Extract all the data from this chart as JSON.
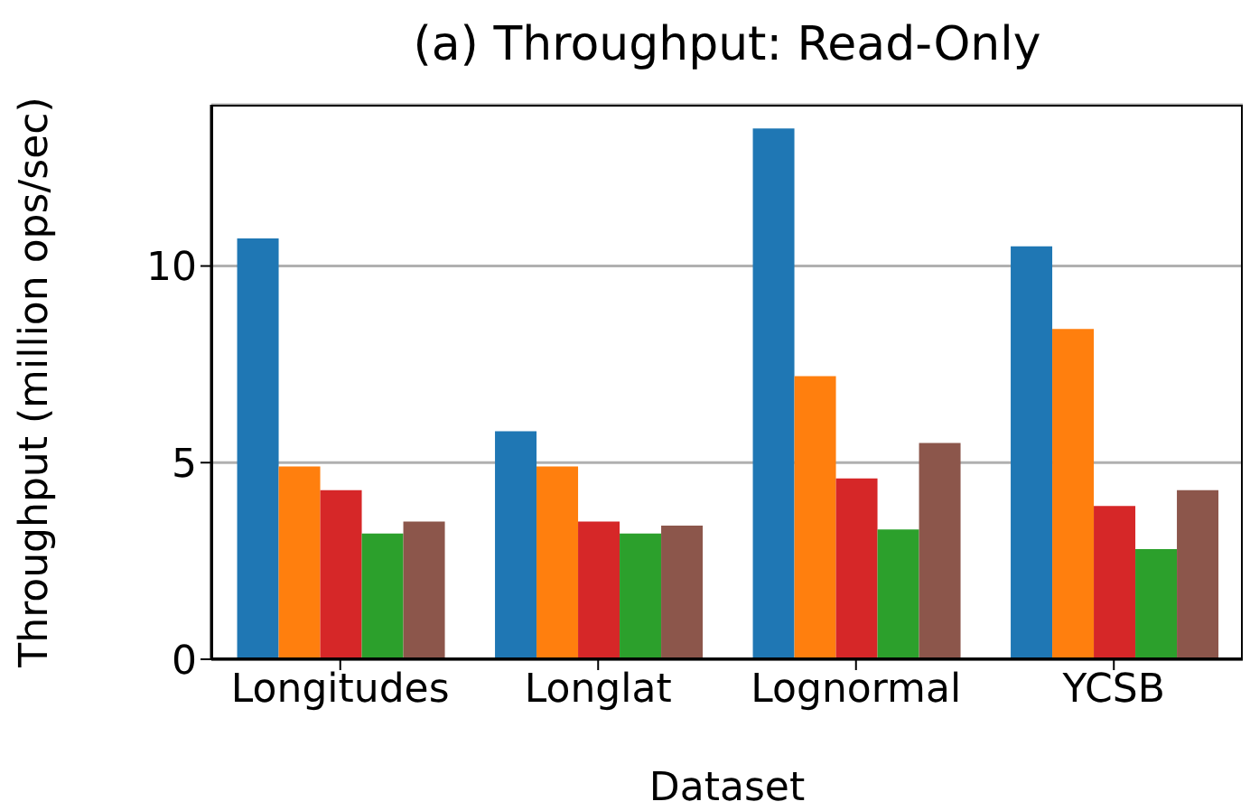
{
  "chart_data": {
    "type": "bar",
    "title": "(a) Throughput: Read-Only",
    "xlabel": "Dataset",
    "ylabel": "Throughput (million ops/sec)",
    "categories": [
      "Longitudes",
      "Longlat",
      "Lognormal",
      "YCSB"
    ],
    "series": [
      {
        "color": "#1f77b4",
        "values": [
          10.7,
          5.8,
          13.5,
          10.5
        ]
      },
      {
        "color": "#ff7f0e",
        "values": [
          4.9,
          4.9,
          7.2,
          8.4
        ]
      },
      {
        "color": "#d62728",
        "values": [
          4.3,
          3.5,
          4.6,
          3.9
        ]
      },
      {
        "color": "#2ca02c",
        "values": [
          3.2,
          3.2,
          3.3,
          2.8
        ]
      },
      {
        "color": "#8c564b",
        "values": [
          3.5,
          3.4,
          5.5,
          4.3
        ]
      }
    ],
    "ylim": [
      0,
      14.1
    ],
    "yticks": [
      0,
      5,
      10
    ],
    "grid": "y",
    "legend": false
  }
}
